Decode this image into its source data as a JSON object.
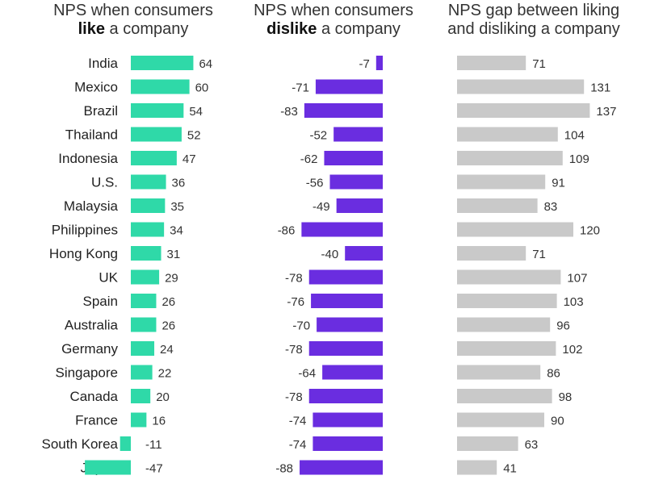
{
  "chart_data": [
    {
      "type": "bar",
      "orientation": "horizontal",
      "title_parts": [
        "NPS when consumers",
        "like",
        "a company"
      ],
      "categories": [
        "India",
        "Mexico",
        "Brazil",
        "Thailand",
        "Indonesia",
        "U.S.",
        "Malaysia",
        "Philippines",
        "Hong Kong",
        "UK",
        "Spain",
        "Australia",
        "Germany",
        "Singapore",
        "Canada",
        "France",
        "South Korea",
        "Japan"
      ],
      "values": [
        64,
        60,
        54,
        52,
        47,
        36,
        35,
        34,
        31,
        29,
        26,
        26,
        24,
        22,
        20,
        16,
        -11,
        -47
      ],
      "color": "#2fd9a8"
    },
    {
      "type": "bar",
      "orientation": "horizontal",
      "title_parts": [
        "NPS when consumers",
        "dislike",
        "a company"
      ],
      "categories": [
        "India",
        "Mexico",
        "Brazil",
        "Thailand",
        "Indonesia",
        "U.S.",
        "Malaysia",
        "Philippines",
        "Hong Kong",
        "UK",
        "Spain",
        "Australia",
        "Germany",
        "Singapore",
        "Canada",
        "France",
        "South Korea",
        "Japan"
      ],
      "values": [
        -7,
        -71,
        -83,
        -52,
        -62,
        -56,
        -49,
        -86,
        -40,
        -78,
        -76,
        -70,
        -78,
        -64,
        -78,
        -74,
        -74,
        -88
      ],
      "color": "#6a2de0"
    },
    {
      "type": "bar",
      "orientation": "horizontal",
      "title_parts": [
        "NPS gap between liking",
        "and disliking a company"
      ],
      "categories": [
        "India",
        "Mexico",
        "Brazil",
        "Thailand",
        "Indonesia",
        "U.S.",
        "Malaysia",
        "Philippines",
        "Hong Kong",
        "UK",
        "Spain",
        "Australia",
        "Germany",
        "Singapore",
        "Canada",
        "France",
        "South Korea",
        "Japan"
      ],
      "values": [
        71,
        131,
        137,
        104,
        109,
        91,
        83,
        120,
        71,
        107,
        103,
        96,
        102,
        86,
        98,
        90,
        63,
        41
      ],
      "color": "#c9c9c9"
    }
  ]
}
